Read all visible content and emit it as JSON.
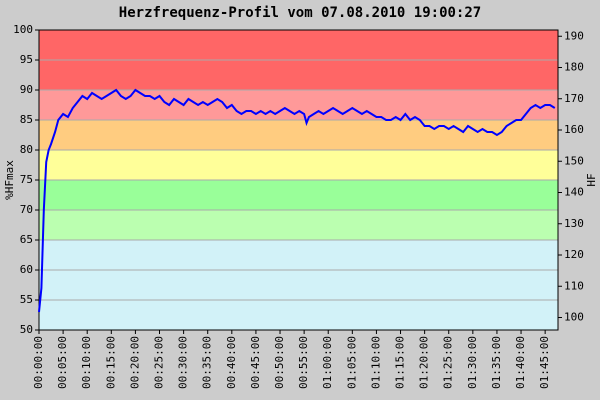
{
  "chart_data": {
    "type": "line",
    "title": "Herzfrequenz-Profil vom 07.08.2010 19:00:27",
    "y_label": "%HFmax",
    "y2_label": "HF",
    "xlim": [
      0,
      6460
    ],
    "ylim": [
      50,
      100
    ],
    "y2lim": [
      96,
      192
    ],
    "yticks": [
      50,
      55,
      60,
      65,
      70,
      75,
      80,
      85,
      90,
      95,
      100
    ],
    "y2ticks": [
      100,
      110,
      120,
      130,
      140,
      150,
      160,
      170,
      180,
      190
    ],
    "xticks": [
      {
        "value": 0,
        "label": "00:00:00"
      },
      {
        "value": 300,
        "label": "00:05:00"
      },
      {
        "value": 600,
        "label": "00:10:00"
      },
      {
        "value": 900,
        "label": "00:15:00"
      },
      {
        "value": 1200,
        "label": "00:20:00"
      },
      {
        "value": 1500,
        "label": "00:25:00"
      },
      {
        "value": 1800,
        "label": "00:30:00"
      },
      {
        "value": 2100,
        "label": "00:35:00"
      },
      {
        "value": 2400,
        "label": "00:40:00"
      },
      {
        "value": 2700,
        "label": "00:45:00"
      },
      {
        "value": 3000,
        "label": "00:50:00"
      },
      {
        "value": 3300,
        "label": "00:55:00"
      },
      {
        "value": 3600,
        "label": "01:00:00"
      },
      {
        "value": 3900,
        "label": "01:05:00"
      },
      {
        "value": 4200,
        "label": "01:10:00"
      },
      {
        "value": 4500,
        "label": "01:15:00"
      },
      {
        "value": 4800,
        "label": "01:20:00"
      },
      {
        "value": 5100,
        "label": "01:25:00"
      },
      {
        "value": 5400,
        "label": "01:30:00"
      },
      {
        "value": 5700,
        "label": "01:35:00"
      },
      {
        "value": 6000,
        "label": "01:40:00"
      },
      {
        "value": 6300,
        "label": "01:45:00"
      }
    ],
    "zones": [
      {
        "from": 50,
        "to": 65,
        "color": "#d2f2f8"
      },
      {
        "from": 65,
        "to": 70,
        "color": "#bbffb0"
      },
      {
        "from": 70,
        "to": 75,
        "color": "#99ff99"
      },
      {
        "from": 75,
        "to": 80,
        "color": "#ffff99"
      },
      {
        "from": 80,
        "to": 85,
        "color": "#ffcc80"
      },
      {
        "from": 85,
        "to": 90,
        "color": "#ff9999"
      },
      {
        "from": 90,
        "to": 100,
        "color": "#ff6666"
      }
    ],
    "grid": true,
    "x": [
      0,
      30,
      60,
      90,
      120,
      150,
      200,
      240,
      300,
      360,
      420,
      480,
      540,
      600,
      660,
      720,
      780,
      840,
      900,
      960,
      1020,
      1080,
      1140,
      1200,
      1260,
      1320,
      1380,
      1440,
      1500,
      1560,
      1620,
      1680,
      1740,
      1800,
      1860,
      1920,
      1980,
      2040,
      2100,
      2160,
      2220,
      2280,
      2340,
      2400,
      2460,
      2520,
      2580,
      2640,
      2700,
      2760,
      2820,
      2880,
      2940,
      3000,
      3060,
      3120,
      3180,
      3240,
      3300,
      3330,
      3360,
      3420,
      3480,
      3540,
      3600,
      3660,
      3720,
      3780,
      3840,
      3900,
      3960,
      4020,
      4080,
      4140,
      4200,
      4260,
      4320,
      4380,
      4440,
      4500,
      4560,
      4620,
      4680,
      4740,
      4800,
      4860,
      4920,
      4980,
      5040,
      5100,
      5160,
      5220,
      5280,
      5340,
      5400,
      5460,
      5520,
      5580,
      5640,
      5700,
      5760,
      5820,
      5880,
      5940,
      6000,
      6060,
      6120,
      6180,
      6240,
      6300,
      6360,
      6420
    ],
    "series": [
      {
        "name": "HF",
        "color": "#0000ff",
        "values": [
          53,
          57,
          70,
          78,
          80,
          81,
          83,
          85,
          86,
          85.5,
          87,
          88,
          89,
          88.5,
          89.5,
          89,
          88.5,
          89,
          89.5,
          90,
          89,
          88.5,
          89,
          90,
          89.5,
          89,
          89,
          88.5,
          89,
          88,
          87.5,
          88.5,
          88,
          87.5,
          88.5,
          88,
          87.5,
          88,
          87.5,
          88,
          88.5,
          88,
          87,
          87.5,
          86.5,
          86,
          86.5,
          86.5,
          86,
          86.5,
          86,
          86.5,
          86,
          86.5,
          87,
          86.5,
          86,
          86.5,
          86,
          84.5,
          85.5,
          86,
          86.5,
          86,
          86.5,
          87,
          86.5,
          86,
          86.5,
          87,
          86.5,
          86,
          86.5,
          86,
          85.5,
          85.5,
          85,
          85,
          85.5,
          85,
          86,
          85,
          85.5,
          85,
          84,
          84,
          83.5,
          84,
          84,
          83.5,
          84,
          83.5,
          83,
          84,
          83.5,
          83,
          83.5,
          83,
          83,
          82.5,
          83,
          84,
          84.5,
          85,
          85,
          86,
          87,
          87.5,
          87,
          87.5,
          87.5,
          87
        ]
      }
    ]
  }
}
